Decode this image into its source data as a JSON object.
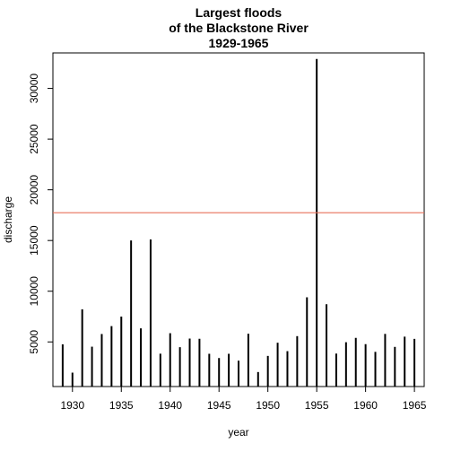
{
  "chart_data": {
    "type": "bar",
    "style": "vertical-lines",
    "title_lines": [
      "Largest floods",
      "of the Blackstone River",
      "1929-1965"
    ],
    "xlabel": "year",
    "ylabel": "discharge",
    "x": [
      1929,
      1930,
      1931,
      1932,
      1933,
      1934,
      1935,
      1936,
      1937,
      1938,
      1939,
      1940,
      1941,
      1942,
      1943,
      1944,
      1945,
      1946,
      1947,
      1948,
      1949,
      1950,
      1951,
      1952,
      1953,
      1954,
      1955,
      1956,
      1957,
      1958,
      1959,
      1960,
      1961,
      1962,
      1963,
      1964,
      1965
    ],
    "values": [
      4760,
      1970,
      8220,
      4530,
      5780,
      6560,
      7500,
      15000,
      6340,
      15100,
      3840,
      5860,
      4480,
      5330,
      5310,
      3830,
      3410,
      3830,
      3150,
      5810,
      2030,
      3620,
      4920,
      4090,
      5570,
      9400,
      32900,
      8710,
      3850,
      4970,
      5398,
      4780,
      4020,
      5790,
      4510,
      5520,
      5300
    ],
    "xlim": [
      1928,
      1966
    ],
    "ylim": [
      600,
      33500
    ],
    "x_ticks": [
      1930,
      1935,
      1940,
      1945,
      1950,
      1955,
      1960,
      1965
    ],
    "y_ticks": [
      5000,
      10000,
      15000,
      20000,
      25000,
      30000
    ],
    "reference_line": {
      "y": 17740,
      "color": "#e8705a"
    },
    "line_color": "#000000",
    "grid": false
  }
}
